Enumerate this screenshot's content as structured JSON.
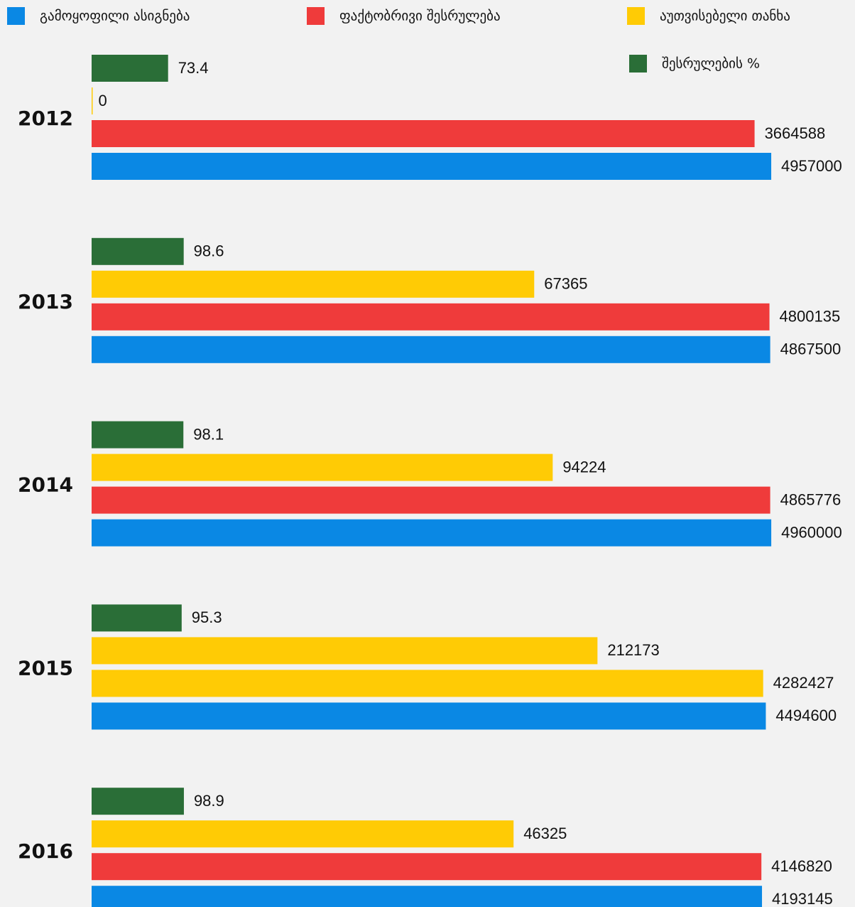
{
  "chart_data": {
    "type": "hbar",
    "categories": [
      "2012",
      "2013",
      "2014",
      "2015",
      "2016"
    ],
    "log_scale": true,
    "xlim": [
      22,
      5150000
    ],
    "x2lim": [
      -50,
      1050
    ],
    "series": [
      {
        "name": "შესრულების %",
        "color": "#2a6e37",
        "axis": "x2",
        "values": [
          73.4,
          98.6,
          98.1,
          95.3,
          98.9
        ]
      },
      {
        "name": "აუთვისებელი თანხა",
        "color": "#ffcb05",
        "values": [
          0,
          67365,
          94224,
          212173,
          46325
        ]
      },
      {
        "name": "ფაქტობრივი შესრულება",
        "color": "#ef3b3b",
        "point_colors": [
          "#ef3b3b",
          "#ef3b3b",
          "#ef3b3b",
          "#ffcb05",
          "#ef3b3b"
        ],
        "values": [
          3664588,
          4800135,
          4865776,
          4282427,
          4146820
        ]
      },
      {
        "name": "გამოყოფილი ასიგნება",
        "color": "#0a88e4",
        "values": [
          4957000,
          4867500,
          4960000,
          4494600,
          4193145
        ]
      }
    ]
  }
}
